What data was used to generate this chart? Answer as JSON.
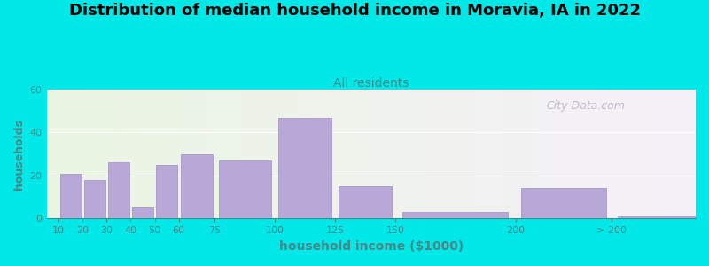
{
  "title": "Distribution of median household income in Moravia, IA in 2022",
  "subtitle": "All residents",
  "xlabel": "household income ($1000)",
  "ylabel": "households",
  "bar_labels": [
    "10",
    "20",
    "30",
    "40",
    "50",
    "60",
    "75",
    "100",
    "125",
    "150",
    "200",
    "> 200"
  ],
  "bar_values": [
    21,
    18,
    26,
    5,
    25,
    30,
    27,
    47,
    15,
    3,
    14,
    1
  ],
  "bar_color": "#b8a8d8",
  "bar_edge_color": "#a898c8",
  "ylim": [
    0,
    60
  ],
  "yticks": [
    0,
    20,
    40,
    60
  ],
  "background_outer": "#00e8e8",
  "background_inner_left": "#eaf5e2",
  "background_inner_right": "#f5f0f8",
  "watermark": "City-Data.com",
  "title_fontsize": 13,
  "subtitle_fontsize": 10,
  "subtitle_color": "#448888",
  "ylabel_color": "#448888",
  "xlabel_color": "#448888",
  "tick_label_color": "#448888",
  "x_positions": [
    10,
    20,
    30,
    40,
    50,
    60,
    75,
    100,
    125,
    150,
    200,
    240
  ],
  "x_widths": [
    10,
    10,
    10,
    10,
    10,
    15,
    25,
    25,
    25,
    50,
    40,
    40
  ],
  "xlim": [
    5,
    275
  ]
}
